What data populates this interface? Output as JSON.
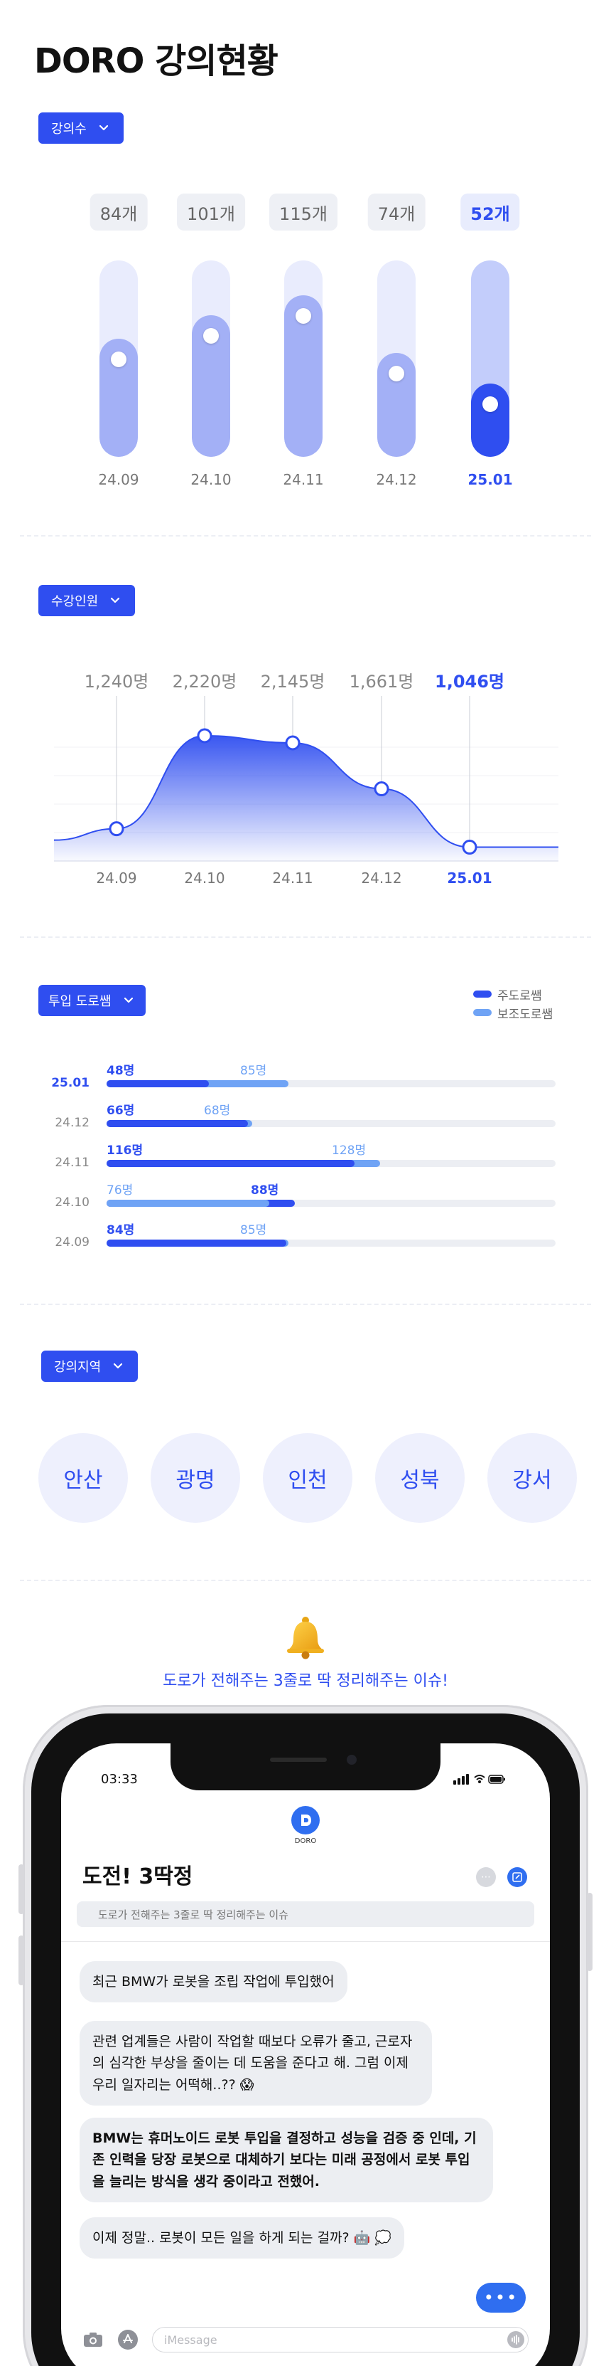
{
  "page_title": "DORO 강의현황",
  "section1": {
    "dropdown": "강의수",
    "chart_data": {
      "type": "bar",
      "categories": [
        "24.09",
        "24.10",
        "24.11",
        "24.12",
        "25.01"
      ],
      "values": [
        84,
        101,
        115,
        74,
        52
      ],
      "value_labels": [
        "84개",
        "101개",
        "115개",
        "74개",
        "52개"
      ],
      "highlight_index": 4,
      "colors": {
        "bar": "#a3b0f6",
        "highlight": "#2f4ef0",
        "track": "#e9ecfd"
      }
    }
  },
  "section2": {
    "dropdown": "수강인원",
    "chart_data": {
      "type": "area",
      "categories": [
        "24.09",
        "24.10",
        "24.11",
        "24.12",
        "25.01"
      ],
      "values": [
        1240,
        2220,
        2145,
        1661,
        1046
      ],
      "value_labels": [
        "1,240명",
        "2,220명",
        "2,145명",
        "1,661명",
        "1,046명"
      ],
      "highlight_index": 4,
      "colors": {
        "area": "#2f4ef0"
      }
    }
  },
  "section3": {
    "dropdown": "투입 도로쌤",
    "legend": [
      {
        "name": "주도로쌤",
        "color": "#2f4ef0"
      },
      {
        "name": "보조도로쌤",
        "color": "#6fa3f5"
      }
    ],
    "chart_data": {
      "type": "bar",
      "orientation": "horizontal",
      "max": 210,
      "categories": [
        "25.01",
        "24.12",
        "24.11",
        "24.10",
        "24.09"
      ],
      "series": [
        {
          "name": "주도로쌤",
          "values": [
            48,
            66,
            116,
            88,
            84
          ],
          "labels": [
            "48명",
            "66명",
            "116명",
            "88명",
            "84명"
          ]
        },
        {
          "name": "보조도로쌤",
          "values": [
            85,
            68,
            128,
            76,
            85
          ],
          "labels": [
            "85명",
            "68명",
            "128명",
            "76명",
            "85명"
          ]
        }
      ],
      "highlight_index": 0
    }
  },
  "section4": {
    "dropdown": "강의지역",
    "regions": [
      "안산",
      "광명",
      "인천",
      "성북",
      "강서"
    ]
  },
  "issue": {
    "bell_icon": "bell-icon",
    "caption": "도로가 전해주는 3줄로 딱 정리해주는 이슈!"
  },
  "phone": {
    "time": "03:33",
    "logo_text": "DORO",
    "chat_title": "도전! 3딱정",
    "search_placeholder": "도로가 전해주는 3줄로 딱 정리해주는 이슈",
    "messages": [
      {
        "text": "최근 BMW가 로봇을 조립 작업에 투입했어",
        "bold": false
      },
      {
        "text": "관련 업계들은 사람이 작업할 때보다 오류가 줄고, 근로자의 심각한 부상을 줄이는 데 도움을 준다고 해. 그럼 이제 우리 일자리는 어떡해..?? 😱",
        "bold": false
      },
      {
        "text": "BMW는 휴머노이드 로봇 투입을 결정하고 성능을 검증 중 인데, 기존 인력을 당장 로봇으로 대체하기 보다는 미래 공정에서 로봇 투입을 늘리는 방식을 생각 중이라고 전했어.",
        "bold": true
      },
      {
        "text": "이제 정말.. 로봇이 모든 일을 하게 되는 걸까? 🤖 💭",
        "bold": false
      }
    ],
    "typing": "•••",
    "input_placeholder": "iMessage"
  }
}
